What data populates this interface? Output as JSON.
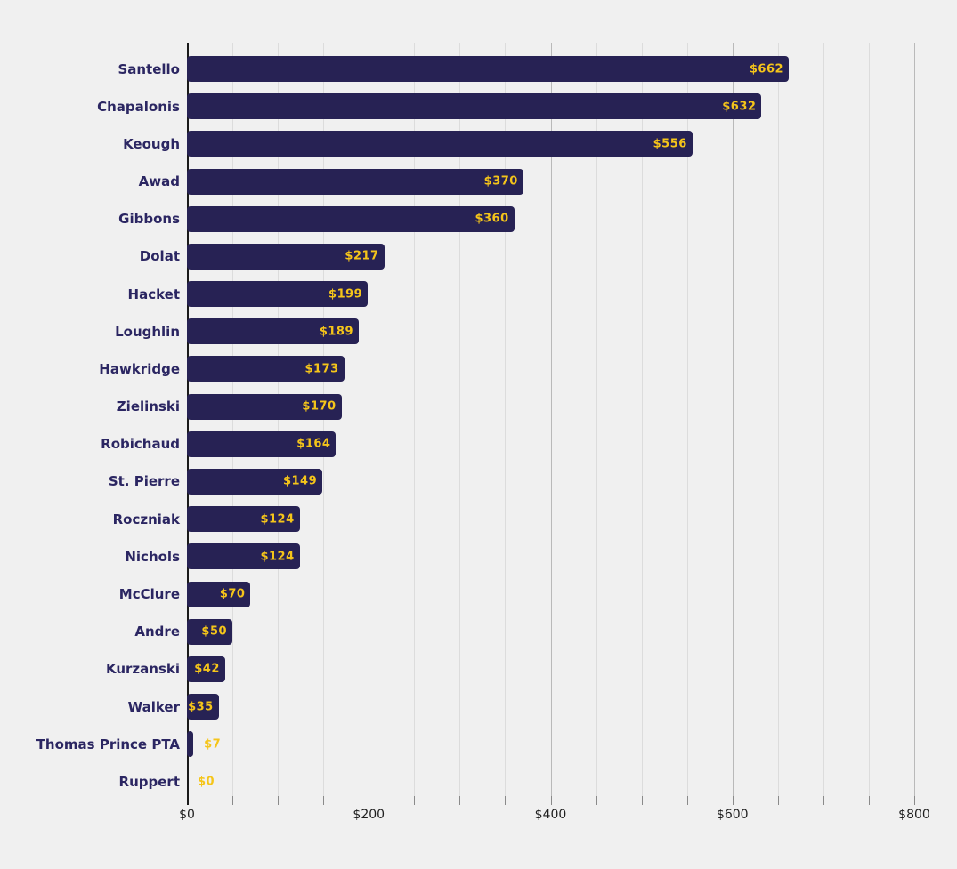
{
  "chart_data": {
    "type": "bar",
    "orientation": "horizontal",
    "title": "",
    "xlabel": "",
    "ylabel": "",
    "categories": [
      "Santello",
      "Chapalonis",
      "Keough",
      "Awad",
      "Gibbons",
      "Dolat",
      "Hacket",
      "Loughlin",
      "Hawkridge",
      "Zielinski",
      "Robichaud",
      "St. Pierre",
      "Roczniak",
      "Nichols",
      "McClure",
      "Andre",
      "Kurzanski",
      "Walker",
      "Thomas Prince PTA",
      "Ruppert"
    ],
    "values": [
      662,
      632,
      556,
      370,
      360,
      217,
      199,
      189,
      173,
      170,
      164,
      149,
      124,
      124,
      70,
      50,
      42,
      35,
      7,
      0
    ],
    "value_labels": [
      "$662",
      "$632",
      "$556",
      "$370",
      "$360",
      "$217",
      "$199",
      "$189",
      "$173",
      "$170",
      "$164",
      "$149",
      "$124",
      "$124",
      "$70",
      "$50",
      "$42",
      "$35",
      "$7",
      "$0"
    ],
    "x_ticks": [
      {
        "value": 0,
        "label": "$0"
      },
      {
        "value": 200,
        "label": "$200"
      },
      {
        "value": 400,
        "label": "$400"
      },
      {
        "value": 600,
        "label": "$600"
      },
      {
        "value": 800,
        "label": "$800"
      }
    ],
    "xlim": [
      0,
      800
    ],
    "gridline_interval": 50,
    "major_gridline_interval": 200,
    "legend": "none",
    "grid": true,
    "colors": {
      "background": "#F0F0F0",
      "bar": "#272254",
      "value_label": "#F5C51A",
      "category_label": "#2B2662",
      "gridline_minor": "#DCDCDC",
      "gridline_major": "#B9B9B9",
      "axis_line": "#1A1A1A",
      "tick_label": "#1F1F1F",
      "tick_mark": "#8A8A8A"
    }
  }
}
